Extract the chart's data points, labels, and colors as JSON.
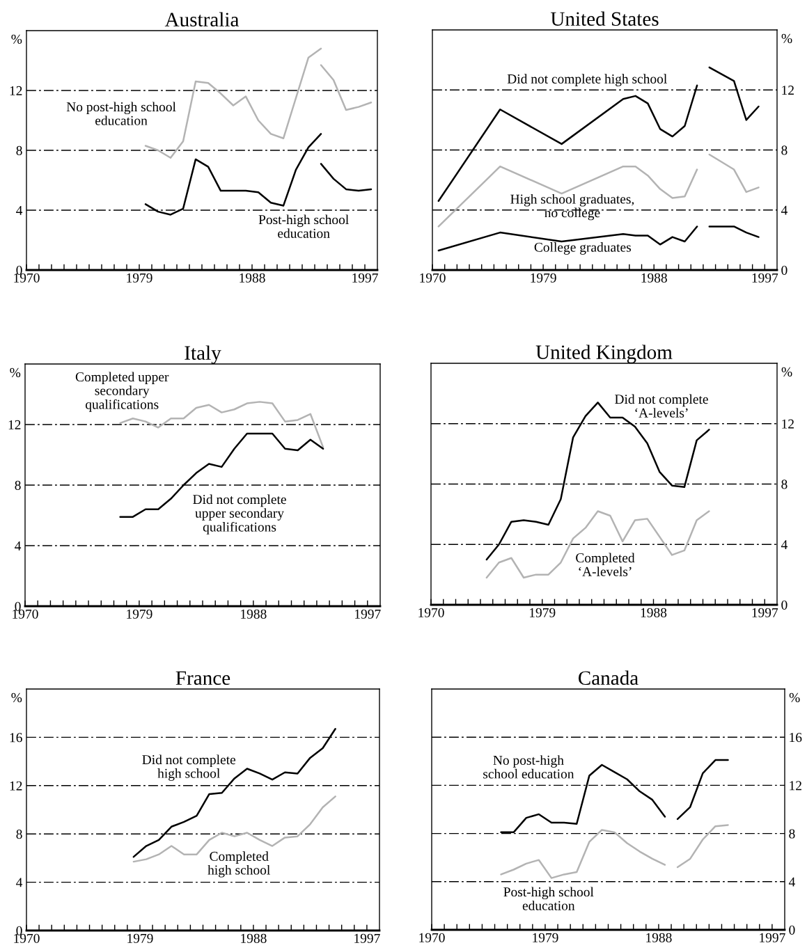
{
  "chart_data": [
    {
      "type": "line",
      "title": "Australia",
      "ylabel": "%",
      "xlim": [
        1970,
        1998
      ],
      "xticks": [
        1970,
        {
          "value": 1971,
          "label": null
        },
        {
          "value": 1972,
          "label": null
        },
        {
          "value": 1973,
          "label": null
        },
        {
          "value": 1974,
          "label": null
        },
        {
          "value": 1975,
          "label": null
        },
        {
          "value": 1976,
          "label": null
        },
        {
          "value": 1977,
          "label": null
        },
        {
          "value": 1978,
          "label": null
        },
        1979,
        {
          "value": 1980,
          "label": null
        },
        {
          "value": 1981,
          "label": null
        },
        {
          "value": 1982,
          "label": null
        },
        {
          "value": 1983,
          "label": null
        },
        {
          "value": 1984,
          "label": null
        },
        {
          "value": 1985,
          "label": null
        },
        {
          "value": 1986,
          "label": null
        },
        {
          "value": 1987,
          "label": null
        },
        1988,
        {
          "value": 1989,
          "label": null
        },
        {
          "value": 1990,
          "label": null
        },
        {
          "value": 1991,
          "label": null
        },
        {
          "value": 1992,
          "label": null
        },
        {
          "value": 1993,
          "label": null
        },
        {
          "value": 1994,
          "label": null
        },
        {
          "value": 1995,
          "label": null
        },
        {
          "value": 1996,
          "label": null
        },
        1997
      ],
      "ylim": [
        0,
        16
      ],
      "yticks": [
        0,
        4,
        8,
        12
      ],
      "grid": "y",
      "series": [
        {
          "name": "No post-high school\neducation",
          "color": "#b3b3b3",
          "x": [
            1979.5,
            1980.5,
            1981.5,
            1982.5,
            1983.5,
            1984.5,
            1985.5,
            1986.5,
            1987.5,
            1988.5,
            1989.5,
            1990.5,
            1991.5,
            1992.5,
            1993.5
          ],
          "values": [
            8.3,
            8.0,
            7.5,
            8.6,
            12.6,
            12.5,
            11.8,
            11.0,
            11.6,
            10.0,
            9.1,
            8.8,
            11.5,
            14.2,
            14.8
          ]
        },
        {
          "name": "Post-high school\neducation",
          "color": "#000000",
          "x": [
            1979.5,
            1980.5,
            1981.5,
            1982.5,
            1983.5,
            1984.5,
            1985.5,
            1986.5,
            1987.5,
            1988.5,
            1989.5,
            1990.5,
            1991.5,
            1992.5,
            1993.5
          ],
          "values": [
            4.4,
            3.9,
            3.7,
            4.1,
            7.4,
            6.9,
            5.3,
            5.3,
            5.3,
            5.2,
            4.5,
            4.3,
            6.7,
            8.2,
            9.1
          ]
        },
        {
          "color": "#b3b3b3",
          "x": [
            1993.5,
            1994.5,
            1995.5,
            1996.5,
            1997.5
          ],
          "values": [
            13.7,
            12.7,
            10.7,
            10.9,
            11.2
          ]
        },
        {
          "color": "#000000",
          "x": [
            1993.5,
            1994.5,
            1995.5,
            1996.5,
            1997.5
          ],
          "values": [
            7.1,
            6.1,
            5.4,
            5.3,
            5.4
          ]
        }
      ]
    },
    {
      "type": "line",
      "title": "United States",
      "ylabel": "%",
      "xlim": [
        1970,
        1998
      ],
      "xticks": [
        1970,
        {
          "value": 1971,
          "label": null
        },
        {
          "value": 1972,
          "label": null
        },
        {
          "value": 1973,
          "label": null
        },
        {
          "value": 1974,
          "label": null
        },
        {
          "value": 1975,
          "label": null
        },
        {
          "value": 1976,
          "label": null
        },
        {
          "value": 1977,
          "label": null
        },
        {
          "value": 1978,
          "label": null
        },
        1979,
        {
          "value": 1980,
          "label": null
        },
        {
          "value": 1981,
          "label": null
        },
        {
          "value": 1982,
          "label": null
        },
        {
          "value": 1983,
          "label": null
        },
        {
          "value": 1984,
          "label": null
        },
        {
          "value": 1985,
          "label": null
        },
        {
          "value": 1986,
          "label": null
        },
        {
          "value": 1987,
          "label": null
        },
        1988,
        {
          "value": 1989,
          "label": null
        },
        {
          "value": 1990,
          "label": null
        },
        {
          "value": 1991,
          "label": null
        },
        {
          "value": 1992,
          "label": null
        },
        {
          "value": 1993,
          "label": null
        },
        {
          "value": 1994,
          "label": null
        },
        {
          "value": 1995,
          "label": null
        },
        {
          "value": 1996,
          "label": null
        },
        1997
      ],
      "ylim": [
        0,
        16
      ],
      "yticks": [
        0,
        4,
        8,
        12
      ],
      "grid": "y",
      "series": [
        {
          "name": "Did not complete high school",
          "color": "#000000",
          "x": [
            1970.5,
            1975.5,
            1980.5,
            1985.5,
            1986.5,
            1987.5,
            1988.5,
            1989.5,
            1990.5,
            1991.5
          ],
          "values": [
            4.6,
            10.7,
            8.4,
            11.4,
            11.6,
            11.1,
            9.4,
            8.9,
            9.6,
            12.3
          ]
        },
        {
          "name": "High school graduates,\nno college",
          "color": "#b3b3b3",
          "x": [
            1970.5,
            1975.5,
            1980.5,
            1985.5,
            1986.5,
            1987.5,
            1988.5,
            1989.5,
            1990.5,
            1991.5
          ],
          "values": [
            2.9,
            6.9,
            5.1,
            6.9,
            6.9,
            6.3,
            5.4,
            4.8,
            4.9,
            6.7
          ]
        },
        {
          "name": "College graduates",
          "color": "#000000",
          "x": [
            1970.5,
            1975.5,
            1980.5,
            1985.5,
            1986.5,
            1987.5,
            1988.5,
            1989.5,
            1990.5,
            1991.5
          ],
          "values": [
            1.3,
            2.5,
            1.9,
            2.4,
            2.3,
            2.3,
            1.7,
            2.2,
            1.9,
            2.9
          ]
        },
        {
          "color": "#000000",
          "x": [
            1992.5,
            1994.5,
            1995.5,
            1996.5
          ],
          "values": [
            13.5,
            12.6,
            10.0,
            10.9
          ]
        },
        {
          "color": "#b3b3b3",
          "x": [
            1992.5,
            1994.5,
            1995.5,
            1996.5
          ],
          "values": [
            7.7,
            6.7,
            5.2,
            5.5
          ]
        },
        {
          "color": "#000000",
          "x": [
            1992.5,
            1994.5,
            1995.5,
            1996.5
          ],
          "values": [
            2.9,
            2.9,
            2.5,
            2.2
          ]
        }
      ]
    },
    {
      "type": "line",
      "title": "Italy",
      "ylabel": "%",
      "xlim": [
        1970,
        1998
      ],
      "xticks": [
        1970,
        {
          "value": 1971,
          "label": null
        },
        {
          "value": 1972,
          "label": null
        },
        {
          "value": 1973,
          "label": null
        },
        {
          "value": 1974,
          "label": null
        },
        {
          "value": 1975,
          "label": null
        },
        {
          "value": 1976,
          "label": null
        },
        {
          "value": 1977,
          "label": null
        },
        {
          "value": 1978,
          "label": null
        },
        1979,
        {
          "value": 1980,
          "label": null
        },
        {
          "value": 1981,
          "label": null
        },
        {
          "value": 1982,
          "label": null
        },
        {
          "value": 1983,
          "label": null
        },
        {
          "value": 1984,
          "label": null
        },
        {
          "value": 1985,
          "label": null
        },
        {
          "value": 1986,
          "label": null
        },
        {
          "value": 1987,
          "label": null
        },
        1988,
        {
          "value": 1989,
          "label": null
        },
        {
          "value": 1990,
          "label": null
        },
        {
          "value": 1991,
          "label": null
        },
        {
          "value": 1992,
          "label": null
        },
        {
          "value": 1993,
          "label": null
        },
        {
          "value": 1994,
          "label": null
        },
        {
          "value": 1995,
          "label": null
        },
        {
          "value": 1996,
          "label": null
        },
        1997
      ],
      "ylim": [
        0,
        16
      ],
      "yticks": [
        0,
        4,
        8,
        12
      ],
      "grid": "y",
      "series": [
        {
          "name": "Completed upper\nsecondary\nqualifications",
          "color": "#b3b3b3",
          "x": [
            1977.5,
            1978.5,
            1979.5,
            1980.5,
            1981.5,
            1982.5,
            1983.5,
            1984.5,
            1985.5,
            1986.5,
            1987.5,
            1988.5,
            1989.5,
            1990.5,
            1991.5,
            1992.5,
            1993.5
          ],
          "values": [
            12.1,
            12.4,
            12.2,
            11.8,
            12.4,
            12.4,
            13.1,
            13.3,
            12.8,
            13.0,
            13.4,
            13.5,
            13.4,
            12.2,
            12.3,
            12.7,
            10.5
          ]
        },
        {
          "name": "Did not complete\nupper secondary\nqualifications",
          "color": "#000000",
          "x": [
            1977.5,
            1978.5,
            1979.5,
            1980.5,
            1981.5,
            1982.5,
            1983.5,
            1984.5,
            1985.5,
            1986.5,
            1987.5,
            1988.5,
            1989.5,
            1990.5,
            1991.5,
            1992.5,
            1993.5
          ],
          "values": [
            5.9,
            5.9,
            6.4,
            6.4,
            7.1,
            8.0,
            8.8,
            9.4,
            9.2,
            10.4,
            11.4,
            11.4,
            11.4,
            10.4,
            10.3,
            11.0,
            10.4
          ]
        }
      ]
    },
    {
      "type": "line",
      "title": "United Kingdom",
      "ylabel": "%",
      "xlim": [
        1970,
        1998
      ],
      "xticks": [
        1970,
        {
          "value": 1971,
          "label": null
        },
        {
          "value": 1972,
          "label": null
        },
        {
          "value": 1973,
          "label": null
        },
        {
          "value": 1974,
          "label": null
        },
        {
          "value": 1975,
          "label": null
        },
        {
          "value": 1976,
          "label": null
        },
        {
          "value": 1977,
          "label": null
        },
        {
          "value": 1978,
          "label": null
        },
        1979,
        {
          "value": 1980,
          "label": null
        },
        {
          "value": 1981,
          "label": null
        },
        {
          "value": 1982,
          "label": null
        },
        {
          "value": 1983,
          "label": null
        },
        {
          "value": 1984,
          "label": null
        },
        {
          "value": 1985,
          "label": null
        },
        {
          "value": 1986,
          "label": null
        },
        {
          "value": 1987,
          "label": null
        },
        1988,
        {
          "value": 1989,
          "label": null
        },
        {
          "value": 1990,
          "label": null
        },
        {
          "value": 1991,
          "label": null
        },
        {
          "value": 1992,
          "label": null
        },
        {
          "value": 1993,
          "label": null
        },
        {
          "value": 1994,
          "label": null
        },
        {
          "value": 1995,
          "label": null
        },
        {
          "value": 1996,
          "label": null
        },
        1997
      ],
      "ylim": [
        0,
        16
      ],
      "yticks": [
        0,
        4,
        8,
        12
      ],
      "grid": "y",
      "series": [
        {
          "name": "Did not complete\n‘A-levels’",
          "color": "#000000",
          "x": [
            1974.5,
            1975.5,
            1976.5,
            1977.5,
            1978.5,
            1979.5,
            1980.5,
            1981.5,
            1982.5,
            1983.5,
            1984.5,
            1985.5,
            1986.5,
            1987.5,
            1988.5,
            1989.5,
            1990.5,
            1991.5,
            1992.5
          ],
          "values": [
            3.0,
            4.0,
            5.5,
            5.6,
            5.5,
            5.3,
            7.0,
            11.1,
            12.5,
            13.4,
            12.4,
            12.4,
            11.8,
            10.7,
            8.8,
            7.9,
            7.8,
            10.9,
            11.6
          ]
        },
        {
          "name": "Completed\n‘A-levels’",
          "color": "#b3b3b3",
          "x": [
            1974.5,
            1975.5,
            1976.5,
            1977.5,
            1978.5,
            1979.5,
            1980.5,
            1981.5,
            1982.5,
            1983.5,
            1984.5,
            1985.5,
            1986.5,
            1987.5,
            1988.5,
            1989.5,
            1990.5,
            1991.5,
            1992.5
          ],
          "values": [
            1.8,
            2.8,
            3.1,
            1.8,
            2.0,
            2.0,
            2.8,
            4.4,
            5.1,
            6.2,
            5.9,
            4.2,
            5.6,
            5.7,
            4.5,
            3.3,
            3.6,
            5.6,
            6.2
          ]
        }
      ]
    },
    {
      "type": "line",
      "title": "France",
      "ylabel": "%",
      "xlim": [
        1970,
        1998
      ],
      "xticks": [
        1970,
        {
          "value": 1971,
          "label": null
        },
        {
          "value": 1972,
          "label": null
        },
        {
          "value": 1973,
          "label": null
        },
        {
          "value": 1974,
          "label": null
        },
        {
          "value": 1975,
          "label": null
        },
        {
          "value": 1976,
          "label": null
        },
        {
          "value": 1977,
          "label": null
        },
        {
          "value": 1978,
          "label": null
        },
        1979,
        {
          "value": 1980,
          "label": null
        },
        {
          "value": 1981,
          "label": null
        },
        {
          "value": 1982,
          "label": null
        },
        {
          "value": 1983,
          "label": null
        },
        {
          "value": 1984,
          "label": null
        },
        {
          "value": 1985,
          "label": null
        },
        {
          "value": 1986,
          "label": null
        },
        {
          "value": 1987,
          "label": null
        },
        1988,
        {
          "value": 1989,
          "label": null
        },
        {
          "value": 1990,
          "label": null
        },
        {
          "value": 1991,
          "label": null
        },
        {
          "value": 1992,
          "label": null
        },
        {
          "value": 1993,
          "label": null
        },
        {
          "value": 1994,
          "label": null
        },
        {
          "value": 1995,
          "label": null
        },
        {
          "value": 1996,
          "label": null
        },
        1997
      ],
      "ylim": [
        0,
        20
      ],
      "yticks": [
        0,
        4,
        8,
        12,
        16
      ],
      "grid": "y",
      "series": [
        {
          "name": "Did not complete\nhigh school",
          "color": "#000000",
          "x": [
            1978.5,
            1979.5,
            1980.5,
            1981.5,
            1982.5,
            1983.5,
            1984.5,
            1985.5,
            1986.5,
            1987.5,
            1988.5,
            1989.5,
            1990.5,
            1991.5,
            1992.5,
            1993.5,
            1994.5
          ],
          "values": [
            6.1,
            7.0,
            7.5,
            8.6,
            9.0,
            9.5,
            11.3,
            11.4,
            12.6,
            13.4,
            13.0,
            12.5,
            13.1,
            13.0,
            14.3,
            15.1,
            16.7
          ]
        },
        {
          "name": "Completed\nhigh school",
          "color": "#b3b3b3",
          "x": [
            1978.5,
            1979.5,
            1980.5,
            1981.5,
            1982.5,
            1983.5,
            1984.5,
            1985.5,
            1986.5,
            1987.5,
            1988.5,
            1989.5,
            1990.5,
            1991.5,
            1992.5,
            1993.5,
            1994.5
          ],
          "values": [
            5.7,
            5.9,
            6.3,
            7.0,
            6.3,
            6.3,
            7.5,
            8.1,
            7.8,
            8.1,
            7.5,
            7.0,
            7.7,
            7.8,
            8.8,
            10.2,
            11.1
          ]
        }
      ]
    },
    {
      "type": "line",
      "title": "Canada",
      "ylabel": "%",
      "xlim": [
        1970,
        1998
      ],
      "xticks": [
        1970,
        {
          "value": 1971,
          "label": null
        },
        {
          "value": 1972,
          "label": null
        },
        {
          "value": 1973,
          "label": null
        },
        {
          "value": 1974,
          "label": null
        },
        {
          "value": 1975,
          "label": null
        },
        {
          "value": 1976,
          "label": null
        },
        {
          "value": 1977,
          "label": null
        },
        {
          "value": 1978,
          "label": null
        },
        1979,
        {
          "value": 1980,
          "label": null
        },
        {
          "value": 1981,
          "label": null
        },
        {
          "value": 1982,
          "label": null
        },
        {
          "value": 1983,
          "label": null
        },
        {
          "value": 1984,
          "label": null
        },
        {
          "value": 1985,
          "label": null
        },
        {
          "value": 1986,
          "label": null
        },
        {
          "value": 1987,
          "label": null
        },
        1988,
        {
          "value": 1989,
          "label": null
        },
        {
          "value": 1990,
          "label": null
        },
        {
          "value": 1991,
          "label": null
        },
        {
          "value": 1992,
          "label": null
        },
        {
          "value": 1993,
          "label": null
        },
        {
          "value": 1994,
          "label": null
        },
        {
          "value": 1995,
          "label": null
        },
        {
          "value": 1996,
          "label": null
        },
        1997
      ],
      "ylim": [
        0,
        20
      ],
      "yticks": [
        0,
        4,
        8,
        12,
        16
      ],
      "grid": "y",
      "series": [
        {
          "name": "No post-high\nschool education",
          "color": "#000000",
          "x": [
            1975.5,
            1976.5,
            1977.5,
            1978.5,
            1979.5,
            1980.5,
            1981.5,
            1982.5,
            1983.5,
            1984.5,
            1985.5,
            1986.5,
            1987.5,
            1988.5
          ],
          "values": [
            8.1,
            8.1,
            9.3,
            9.6,
            8.9,
            8.9,
            8.8,
            12.8,
            13.7,
            13.1,
            12.5,
            11.5,
            10.8,
            9.4
          ]
        },
        {
          "name": "Post-high school\neducation",
          "color": "#b3b3b3",
          "x": [
            1975.5,
            1976.5,
            1977.5,
            1978.5,
            1979.5,
            1980.5,
            1981.5,
            1982.5,
            1983.5,
            1984.5,
            1985.5,
            1986.5,
            1987.5,
            1988.5
          ],
          "values": [
            4.6,
            5.0,
            5.5,
            5.8,
            4.3,
            4.6,
            4.8,
            7.3,
            8.3,
            8.1,
            7.2,
            6.5,
            5.9,
            5.4
          ]
        },
        {
          "color": "#000000",
          "x": [
            1989.5,
            1990.5,
            1991.5,
            1992.5,
            1993.5
          ],
          "values": [
            9.2,
            10.2,
            13.0,
            14.1,
            14.1
          ]
        },
        {
          "color": "#b3b3b3",
          "x": [
            1989.5,
            1990.5,
            1991.5,
            1992.5,
            1993.5
          ],
          "values": [
            5.2,
            5.9,
            7.5,
            8.6,
            8.7
          ]
        }
      ]
    }
  ]
}
